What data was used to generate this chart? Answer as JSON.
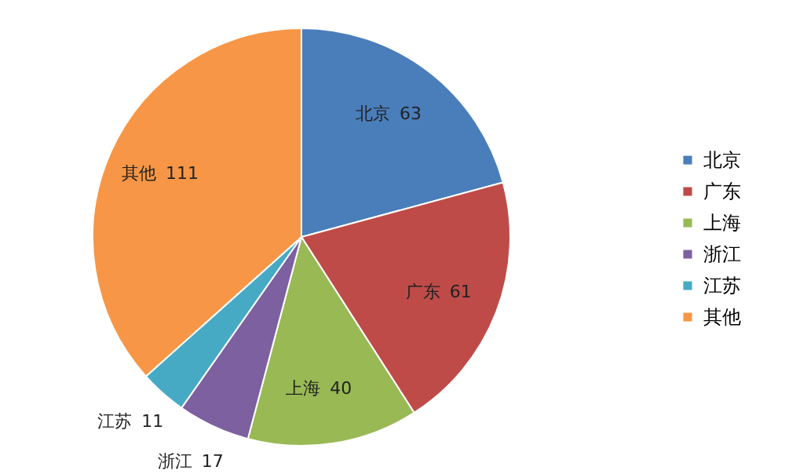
{
  "chart_data": {
    "type": "pie",
    "categories": [
      "北京",
      "广东",
      "上海",
      "浙江",
      "江苏",
      "其他"
    ],
    "values": [
      63,
      61,
      40,
      17,
      11,
      111
    ],
    "colors": [
      "#4a7ebb",
      "#be4b48",
      "#98b954",
      "#7d60a0",
      "#46aac5",
      "#f79646"
    ],
    "data_labels": true,
    "legend": "right"
  }
}
